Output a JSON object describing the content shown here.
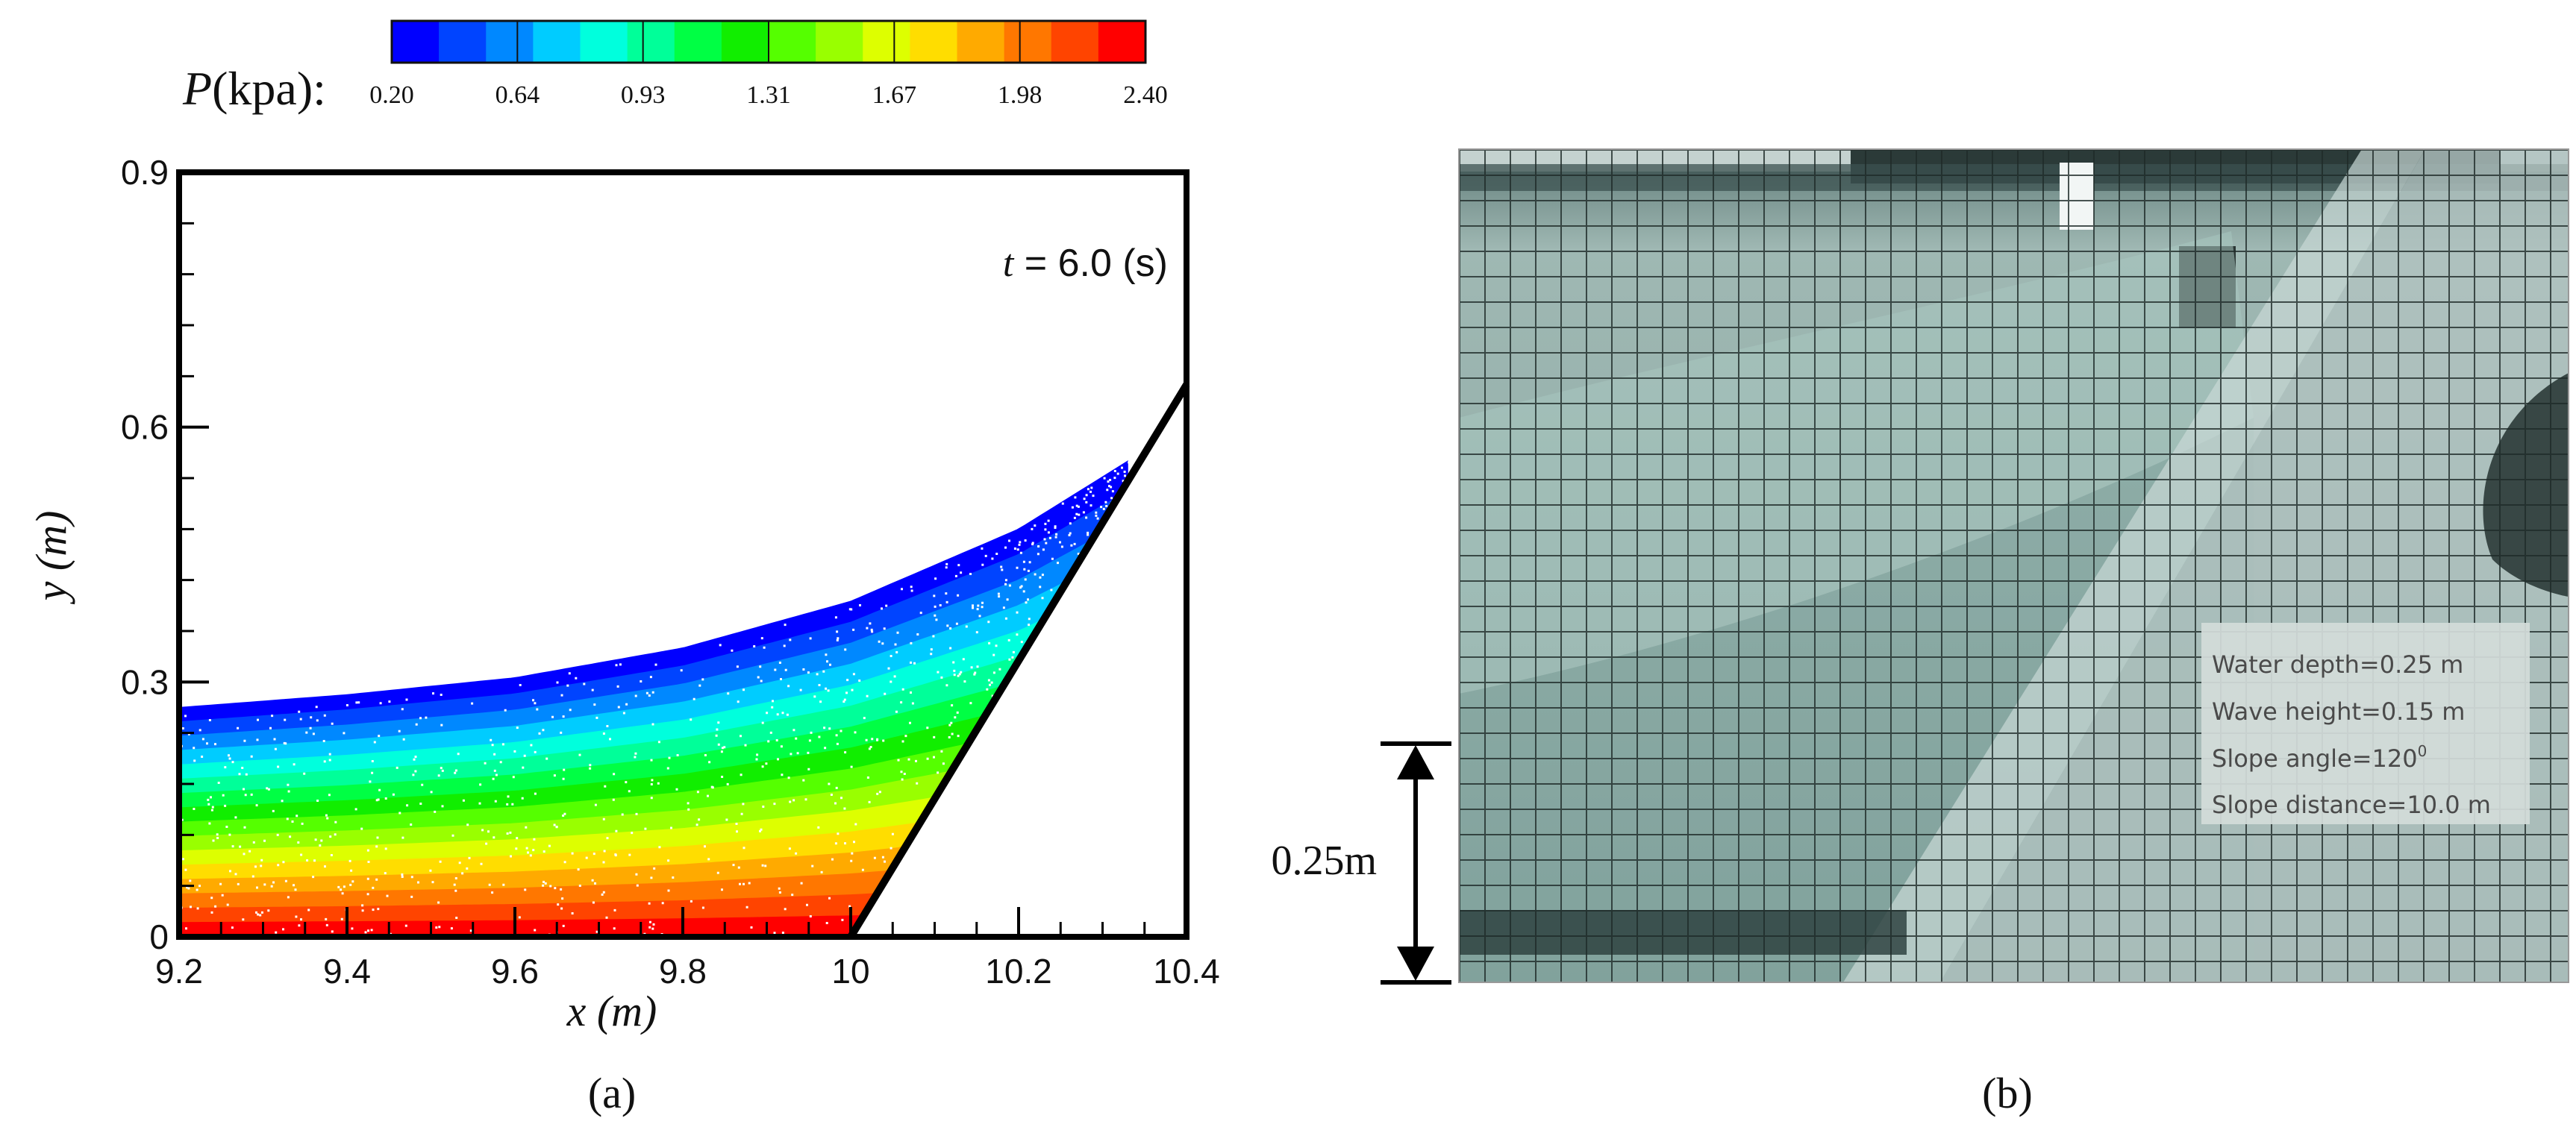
{
  "colorbar": {
    "label_var": "P",
    "label_unit": "(kpa):",
    "ticks": [
      "0.20",
      "0.64",
      "0.93",
      "1.31",
      "1.67",
      "1.98",
      "2.40"
    ],
    "colors": [
      "#0000ff",
      "#0044ff",
      "#0088ff",
      "#00ccff",
      "#00ffdd",
      "#00ff99",
      "#00ff44",
      "#11ee00",
      "#55ff00",
      "#99ff00",
      "#ddff00",
      "#ffdd00",
      "#ffaa00",
      "#ff7700",
      "#ff4400",
      "#ff0000"
    ]
  },
  "chart_data": {
    "type": "scatter",
    "subtype": "particle pressure field",
    "xlabel_var": "x",
    "xlabel_unit": "(m)",
    "ylabel_var": "y",
    "ylabel_unit": "(m)",
    "xlim": [
      9.2,
      10.4
    ],
    "ylim": [
      0,
      0.9
    ],
    "xticks": [
      9.2,
      9.4,
      9.6,
      9.8,
      10,
      10.2,
      10.4
    ],
    "xtick_labels": [
      "9.2",
      "9.4",
      "9.6",
      "9.8",
      "10",
      "10.2",
      "10.4"
    ],
    "yticks": [
      0,
      0.3,
      0.6,
      0.9
    ],
    "ytick_labels": [
      "0",
      "0.3",
      "0.6",
      "0.9"
    ],
    "annotation_var": "t",
    "annotation_text": " = 6.0 (s)",
    "free_surface": [
      [
        9.2,
        0.27
      ],
      [
        9.4,
        0.285
      ],
      [
        9.6,
        0.305
      ],
      [
        9.8,
        0.34
      ],
      [
        10.0,
        0.395
      ],
      [
        10.2,
        0.48
      ],
      [
        10.33,
        0.56
      ]
    ],
    "slope_line": [
      [
        10.0,
        0.0
      ],
      [
        10.4,
        0.65
      ]
    ],
    "pressure_range": [
      0.2,
      2.4
    ],
    "panel_label": "(a)"
  },
  "photo": {
    "notes": [
      "Water depth=0.25 m",
      "Wave height=0.15 m",
      "Slope angle=120",
      "Slope distance=10.0 m"
    ],
    "notes_sup": "0",
    "dimension_label": "0.25m",
    "panel_label": "(b)",
    "colors": {
      "wall": "#7d9894",
      "wall_dark": "#3f5552",
      "water": "#8fb5ae",
      "grid": "#1f2a28"
    }
  }
}
